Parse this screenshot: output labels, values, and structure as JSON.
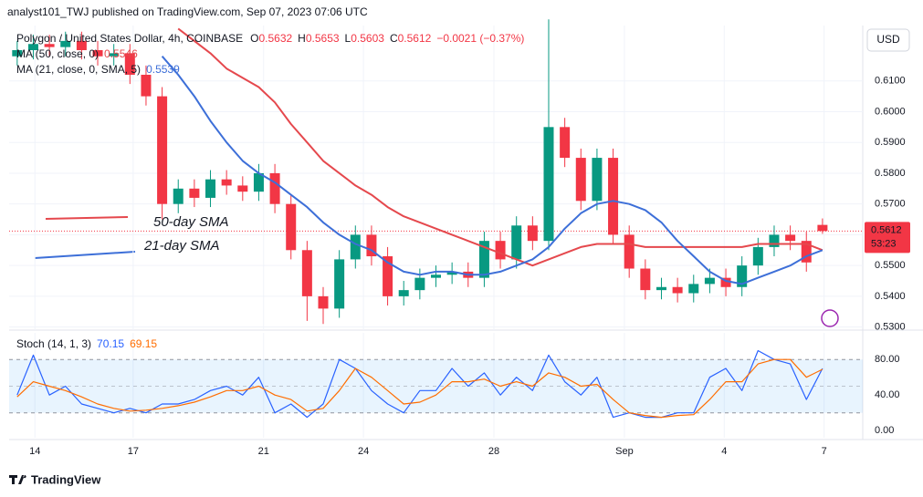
{
  "header": {
    "publisher": "analyst101_TWJ published on TradingView.com, Sep 07, 2023 07:06 UTC",
    "currency": "USD",
    "brand": "TradingView"
  },
  "chart_data": [
    {
      "type": "candlestick",
      "title": "Polygon / United States Dollar, 4h, COINBASE",
      "quote": [
        {
          "label": "O",
          "value": 0.5632
        },
        {
          "label": "H",
          "value": 0.5653
        },
        {
          "label": "L",
          "value": 0.5603
        },
        {
          "label": "C",
          "value": 0.5612
        }
      ],
      "change": "−0.0021 (−0.37%)",
      "up_color": "#089981",
      "down_color": "#f23645",
      "open": [
        0.618,
        0.62,
        0.622,
        0.621,
        0.623,
        0.62,
        0.618,
        0.619,
        0.612,
        0.605,
        0.57,
        0.575,
        0.572,
        0.578,
        0.576,
        0.574,
        0.58,
        0.57,
        0.555,
        0.54,
        0.536,
        0.552,
        0.56,
        0.553,
        0.54,
        0.542,
        0.546,
        0.547,
        0.548,
        0.546,
        0.558,
        0.552,
        0.563,
        0.558,
        0.595,
        0.585,
        0.571,
        0.585,
        0.56,
        0.549,
        0.542,
        0.543,
        0.541,
        0.544,
        0.546,
        0.543,
        0.55,
        0.556,
        0.56,
        0.558,
        0.5632
      ],
      "high": [
        0.623,
        0.625,
        0.625,
        0.626,
        0.626,
        0.623,
        0.622,
        0.622,
        0.615,
        0.608,
        0.578,
        0.578,
        0.581,
        0.581,
        0.579,
        0.583,
        0.583,
        0.573,
        0.558,
        0.543,
        0.555,
        0.563,
        0.563,
        0.556,
        0.545,
        0.549,
        0.55,
        0.551,
        0.551,
        0.561,
        0.561,
        0.566,
        0.566,
        0.63,
        0.598,
        0.588,
        0.588,
        0.588,
        0.563,
        0.552,
        0.546,
        0.546,
        0.547,
        0.549,
        0.549,
        0.553,
        0.559,
        0.563,
        0.563,
        0.561,
        0.5653
      ],
      "low": [
        0.615,
        0.617,
        0.618,
        0.618,
        0.617,
        0.615,
        0.615,
        0.609,
        0.602,
        0.565,
        0.567,
        0.569,
        0.569,
        0.573,
        0.571,
        0.571,
        0.567,
        0.552,
        0.532,
        0.531,
        0.533,
        0.549,
        0.55,
        0.537,
        0.537,
        0.539,
        0.543,
        0.544,
        0.543,
        0.543,
        0.549,
        0.549,
        0.555,
        0.555,
        0.582,
        0.568,
        0.568,
        0.557,
        0.546,
        0.539,
        0.539,
        0.538,
        0.538,
        0.541,
        0.54,
        0.54,
        0.547,
        0.553,
        0.555,
        0.548,
        0.5603
      ],
      "close": [
        0.62,
        0.622,
        0.621,
        0.623,
        0.62,
        0.618,
        0.619,
        0.612,
        0.605,
        0.57,
        0.575,
        0.572,
        0.578,
        0.576,
        0.574,
        0.58,
        0.57,
        0.555,
        0.54,
        0.536,
        0.552,
        0.56,
        0.553,
        0.54,
        0.542,
        0.546,
        0.547,
        0.548,
        0.546,
        0.558,
        0.552,
        0.563,
        0.558,
        0.595,
        0.585,
        0.571,
        0.585,
        0.56,
        0.549,
        0.542,
        0.543,
        0.541,
        0.544,
        0.546,
        0.543,
        0.55,
        0.556,
        0.56,
        0.558,
        0.551,
        0.5612
      ],
      "series": [
        {
          "name": "MA (50, close, 0)",
          "legend_value": 0.5546,
          "color": "#e5484d",
          "values": [
            null,
            null,
            null,
            null,
            null,
            null,
            null,
            null,
            null,
            null,
            0.627,
            0.623,
            0.619,
            0.614,
            0.611,
            0.608,
            0.603,
            0.596,
            0.59,
            0.584,
            0.58,
            0.576,
            0.573,
            0.569,
            0.566,
            0.564,
            0.562,
            0.56,
            0.558,
            0.556,
            0.554,
            0.552,
            0.55,
            0.552,
            0.554,
            0.556,
            0.557,
            0.557,
            0.557,
            0.556,
            0.556,
            0.556,
            0.556,
            0.556,
            0.556,
            0.556,
            0.557,
            0.557,
            0.557,
            0.557,
            0.555
          ]
        },
        {
          "name": "MA (21, close, 0, SMA, 5)",
          "legend_value": 0.5539,
          "color": "#3d6fd8",
          "values": [
            null,
            null,
            null,
            null,
            null,
            null,
            null,
            null,
            null,
            0.618,
            0.612,
            0.605,
            0.597,
            0.59,
            0.584,
            0.58,
            0.577,
            0.573,
            0.569,
            0.564,
            0.56,
            0.557,
            0.555,
            0.551,
            0.548,
            0.547,
            0.548,
            0.548,
            0.547,
            0.547,
            0.548,
            0.55,
            0.552,
            0.556,
            0.562,
            0.567,
            0.57,
            0.571,
            0.57,
            0.568,
            0.564,
            0.558,
            0.553,
            0.548,
            0.545,
            0.544,
            0.546,
            0.548,
            0.55,
            0.553,
            0.555
          ]
        }
      ],
      "annotations": [
        {
          "text": "50-day SMA",
          "color": "#e5484d"
        },
        {
          "text": "21-day SMA",
          "color": "#3d6fd8"
        }
      ],
      "last_price": {
        "value": 0.5612,
        "label": "0.5612"
      },
      "countdown": "53:23",
      "xlim": [
        -0.5,
        52.5
      ],
      "xticks": [
        {
          "value": 1.1,
          "label": "14"
        },
        {
          "value": 7.2,
          "label": "17"
        },
        {
          "value": 15.3,
          "label": "21"
        },
        {
          "value": 21.5,
          "label": "24"
        },
        {
          "value": 29.6,
          "label": "28"
        },
        {
          "value": 37.7,
          "label": "Sep"
        },
        {
          "value": 43.9,
          "label": "4"
        },
        {
          "value": 50.1,
          "label": "7"
        }
      ],
      "ylim": [
        0.529,
        0.628
      ],
      "yticks": [
        {
          "value": 0.53,
          "label": "0.5300"
        },
        {
          "value": 0.54,
          "label": "0.5400"
        },
        {
          "value": 0.55,
          "label": "0.5500"
        },
        {
          "value": 0.56,
          "label": "0.5600"
        },
        {
          "value": 0.57,
          "label": "0.5700"
        },
        {
          "value": 0.58,
          "label": "0.5800"
        },
        {
          "value": 0.59,
          "label": "0.5900"
        },
        {
          "value": 0.6,
          "label": "0.6000"
        },
        {
          "value": 0.61,
          "label": "0.6100"
        }
      ],
      "grid": true
    },
    {
      "type": "line",
      "title": "Stoch (14, 1, 3)",
      "series": [
        {
          "legend_value": 70.15,
          "color": "#2962ff",
          "values": [
            40,
            85,
            40,
            50,
            30,
            25,
            20,
            25,
            20,
            30,
            30,
            35,
            45,
            50,
            40,
            60,
            20,
            30,
            15,
            30,
            80,
            70,
            45,
            30,
            20,
            45,
            45,
            70,
            50,
            65,
            40,
            60,
            45,
            85,
            55,
            40,
            60,
            15,
            20,
            15,
            15,
            20,
            20,
            60,
            70,
            45,
            90,
            80,
            75,
            35,
            70
          ]
        },
        {
          "legend_value": 69.15,
          "color": "#ff6d00",
          "values": [
            38,
            55,
            50,
            45,
            38,
            30,
            25,
            22,
            23,
            25,
            28,
            32,
            38,
            45,
            45,
            50,
            40,
            35,
            22,
            25,
            45,
            70,
            60,
            45,
            30,
            32,
            40,
            55,
            55,
            58,
            50,
            55,
            50,
            65,
            60,
            50,
            52,
            35,
            20,
            17,
            15,
            17,
            18,
            35,
            55,
            55,
            75,
            80,
            80,
            60,
            69
          ]
        }
      ],
      "bands": [
        20,
        50,
        80
      ],
      "ylim": [
        -8,
        110
      ],
      "yticks": [
        {
          "value": 0,
          "label": "0.00"
        },
        {
          "value": 40,
          "label": "40.00"
        },
        {
          "value": 80,
          "label": "80.00"
        }
      ]
    }
  ]
}
